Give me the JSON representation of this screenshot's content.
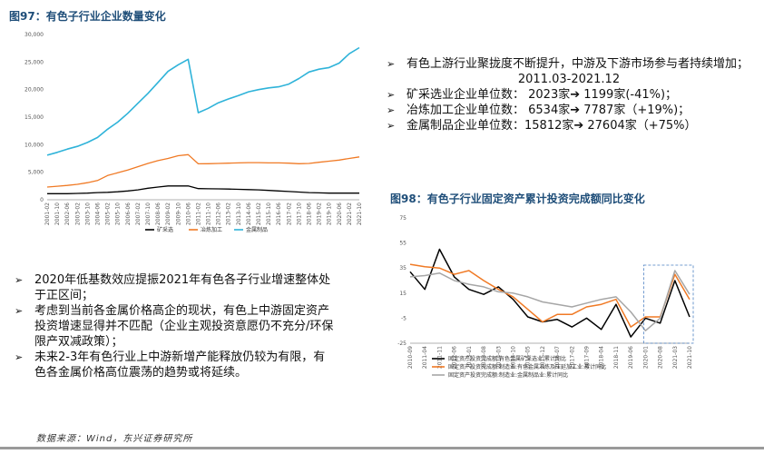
{
  "fig97": {
    "title": "图97：有色子行业企业数量变化"
  },
  "fig98": {
    "title": "图98：有色子行业固定资产累计投资完成额同比变化"
  },
  "right_text": {
    "bullet1": "有色上游行业聚拢度不断提升，中游及下游市场参与者持续增加；",
    "period": "2011.03-2021.12",
    "bullet2": "矿采选业企业单位数：  2023家➔   1199家(-41%)；",
    "bullet3": "冶炼加工企业单位数：  6534家➔   7787家（+19%)；",
    "bullet4": "金属制品企业单位数：15812家➔  27604家（+75%）"
  },
  "left_text": {
    "bullet1": "2020年低基数效应提振2021年有色各子行业增速整体处于正区间；",
    "bullet2": "考虑到当前各金属价格高企的现状，有色上中游固定资产投资增速显得并不匹配（企业主观投资意愿仍不充分/环保限产双减政策）；",
    "bullet3": "未来2-3年有色行业上中游新增产能释放仍较为有限，有色各金属价格高位震荡的趋势或将延续。"
  },
  "source": "数据来源：Wind，东兴证券研究所",
  "colors": {
    "black": "#000000",
    "orange": "#f07a25",
    "teal": "#2fb3d9",
    "gray": "#a6a6a6",
    "dash": "#4a7fc1"
  },
  "chart_data": [
    {
      "type": "line",
      "title": "图97：有色子行业企业数量变化",
      "ylim": [
        0,
        30000
      ],
      "yticks": [
        "0",
        "5,000",
        "10,000",
        "15,000",
        "20,000",
        "25,000",
        "30,000"
      ],
      "x": [
        "2001-02",
        "2001-10",
        "2002-06",
        "2003-02",
        "2003-10",
        "2004-06",
        "2005-02",
        "2005-10",
        "2006-06",
        "2007-02",
        "2007-10",
        "2008-06",
        "2009-02",
        "2009-10",
        "2010-06",
        "2011-02",
        "2011-10",
        "2012-06",
        "2013-02",
        "2013-10",
        "2014-06",
        "2015-02",
        "2015-10",
        "2016-06",
        "2017-02",
        "2017-10",
        "2018-06",
        "2019-02",
        "2019-10",
        "2020-06",
        "2021-02",
        "2021-10"
      ],
      "series": [
        {
          "name": "矿采选",
          "color": "#000000",
          "values": [
            1100,
            1100,
            1100,
            1150,
            1200,
            1300,
            1350,
            1450,
            1600,
            1800,
            2100,
            2300,
            2500,
            2500,
            2500,
            2023,
            2000,
            1980,
            1950,
            1900,
            1850,
            1800,
            1700,
            1600,
            1500,
            1400,
            1300,
            1250,
            1200,
            1200,
            1200,
            1199
          ]
        },
        {
          "name": "冶炼加工",
          "color": "#f07a25",
          "values": [
            2300,
            2450,
            2600,
            2800,
            3100,
            3500,
            4400,
            4900,
            5400,
            6000,
            6600,
            7100,
            7500,
            8000,
            8200,
            6534,
            6550,
            6600,
            6650,
            6700,
            6750,
            6750,
            6700,
            6700,
            6650,
            6550,
            6600,
            6800,
            7000,
            7200,
            7500,
            7787
          ]
        },
        {
          "name": "金属制品",
          "color": "#2fb3d9",
          "values": [
            8100,
            8600,
            9200,
            9700,
            10400,
            11300,
            12800,
            14100,
            15700,
            17500,
            19300,
            21300,
            23300,
            24500,
            25500,
            15812,
            16600,
            17600,
            18300,
            18900,
            19600,
            20000,
            20300,
            20500,
            21000,
            22000,
            23200,
            23700,
            24000,
            24800,
            26500,
            27604
          ]
        }
      ]
    },
    {
      "type": "line",
      "title": "图98：有色子行业固定资产累计投资完成额同比变化",
      "ylim": [
        -25,
        75
      ],
      "yticks": [
        "-25",
        "-5",
        "15",
        "35",
        "55",
        "75"
      ],
      "x": [
        "2010-09",
        "2011-04",
        "2011-11",
        "2012-06",
        "2013-01",
        "2013-08",
        "2014-03",
        "2014-10",
        "2015-05",
        "2015-12",
        "2016-07",
        "2017-02",
        "2017-09",
        "2018-04",
        "2018-11",
        "2019-06",
        "2020-01",
        "2020-08",
        "2021-03",
        "2021-10"
      ],
      "series": [
        {
          "name": "固定资产投资完成额:有色金属矿采选业:累计同比",
          "color": "#000000",
          "values": [
            32,
            18,
            50,
            28,
            18,
            14,
            20,
            10,
            -4,
            -8,
            -6,
            -12,
            -5,
            -14,
            6,
            -20,
            -5,
            -9,
            25,
            -4
          ]
        },
        {
          "name": "固定资产投资完成额:制造业:有色金属冶炼及压延加工业:累计同比",
          "color": "#f07a25",
          "values": [
            38,
            36,
            35,
            30,
            33,
            25,
            18,
            12,
            2,
            -8,
            -2,
            -2,
            4,
            6,
            10,
            -12,
            -4,
            -4,
            30,
            10
          ]
        },
        {
          "name": "固定资产投资完成额:制造业:金属制品业:累计同比",
          "color": "#a6a6a6",
          "values": [
            28,
            29,
            31,
            25,
            22,
            20,
            16,
            15,
            12,
            8,
            6,
            4,
            7,
            10,
            12,
            0,
            -15,
            -5,
            33,
            14
          ]
        }
      ]
    }
  ]
}
